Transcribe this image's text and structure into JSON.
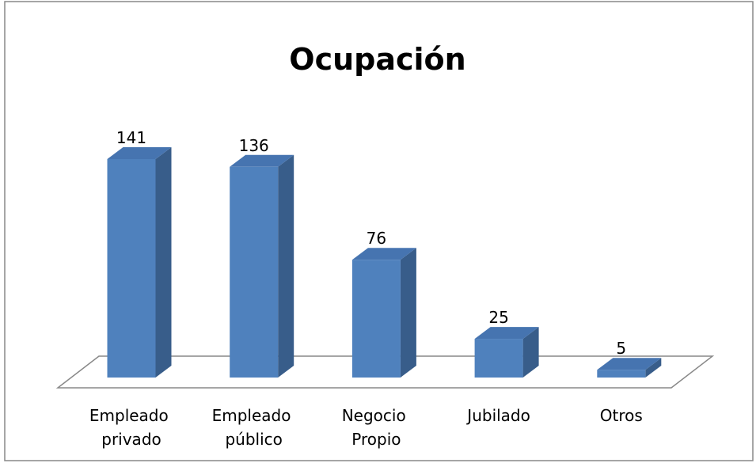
{
  "chart_data": {
    "type": "bar3d",
    "title": "Ocupación",
    "categories": [
      "Empleado privado",
      "Empleado público",
      "Negocio Propio",
      "Jubilado",
      "Otros"
    ],
    "values": [
      141,
      136,
      76,
      25,
      5
    ],
    "color": "#4f81bd"
  }
}
